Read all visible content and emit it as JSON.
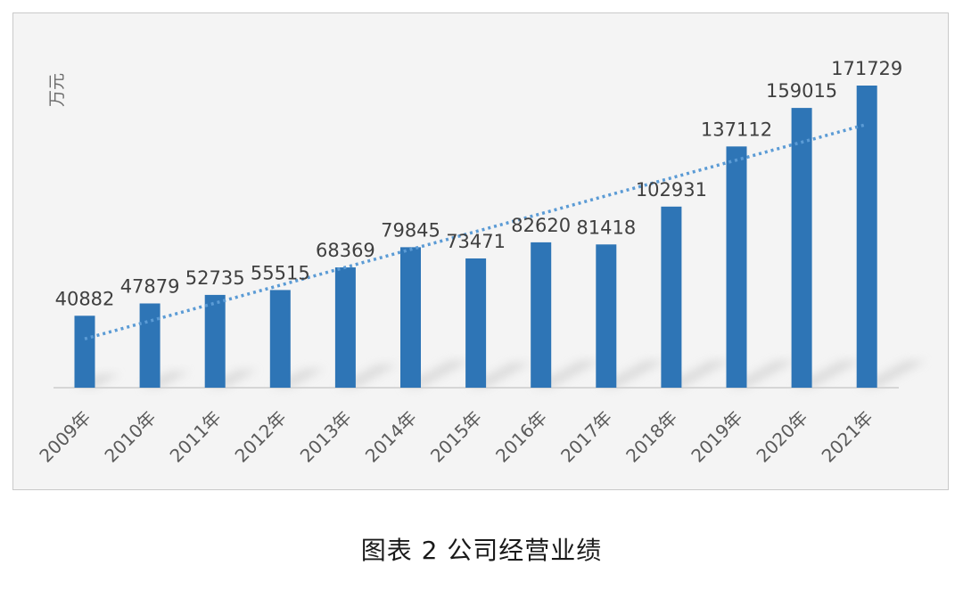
{
  "caption": "图表 2 公司经营业绩",
  "chart_data": {
    "type": "bar",
    "unit_label": "万元",
    "categories": [
      "2009年",
      "2010年",
      "2011年",
      "2012年",
      "2013年",
      "2014年",
      "2015年",
      "2016年",
      "2017年",
      "2018年",
      "2019年",
      "2020年",
      "2021年"
    ],
    "values": [
      40882,
      47879,
      52735,
      55515,
      68369,
      79845,
      73471,
      82620,
      81418,
      102931,
      137112,
      159015,
      171729
    ],
    "data_labels": [
      "40882",
      "47879",
      "52735",
      "55515",
      "68369",
      "79845",
      "73471",
      "82620",
      "81418",
      "102931",
      "137112",
      "159015",
      "171729"
    ],
    "trendline": "linear, dotted",
    "bar_color": "#2e75b6",
    "trend_color": "#5b9bd5",
    "grid": false,
    "legend": "none"
  }
}
